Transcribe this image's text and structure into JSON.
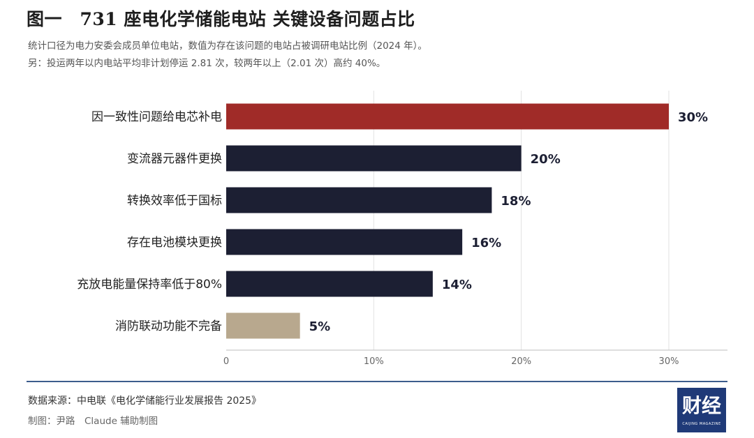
{
  "header": {
    "title": "图一　731 座电化学储能电站  关键设备问题占比",
    "subtitle": "统计口径为电力安委会成员单位电站，数值为存在该问题的电站占被调研电站比例（2024 年）。",
    "note": "另：投运两年以内电站平均非计划停运 2.81 次，较两年以上（2.01 次）高约 40%。"
  },
  "footer": {
    "source": "数据来源：中电联《电化学储能行业发展报告 2025》",
    "credit": "制图：尹路　Claude 辅助制图",
    "logo_text": "财经",
    "logo_subtext": "CAIJING MAGAZINE"
  },
  "chart_data": {
    "type": "bar",
    "orientation": "horizontal",
    "categories": [
      "因一致性问题给电芯补电",
      "变流器元器件更换",
      "转换效率低于国标",
      "存在电池模块更换",
      "充放电能量保持率低于80%",
      "消防联动功能不完备"
    ],
    "values": [
      30,
      20,
      18,
      16,
      14,
      5
    ],
    "value_labels": [
      "30%",
      "20%",
      "18%",
      "16%",
      "14%",
      "5%"
    ],
    "colors": [
      "#a02b28",
      "#1c1f33",
      "#1c1f33",
      "#1c1f33",
      "#1c1f33",
      "#b8a88e"
    ],
    "xlim": [
      0,
      34
    ],
    "xticks": [
      0,
      10,
      20,
      30
    ],
    "xtick_labels": [
      "0",
      "10%",
      "20%",
      "30%"
    ],
    "grid": true
  }
}
